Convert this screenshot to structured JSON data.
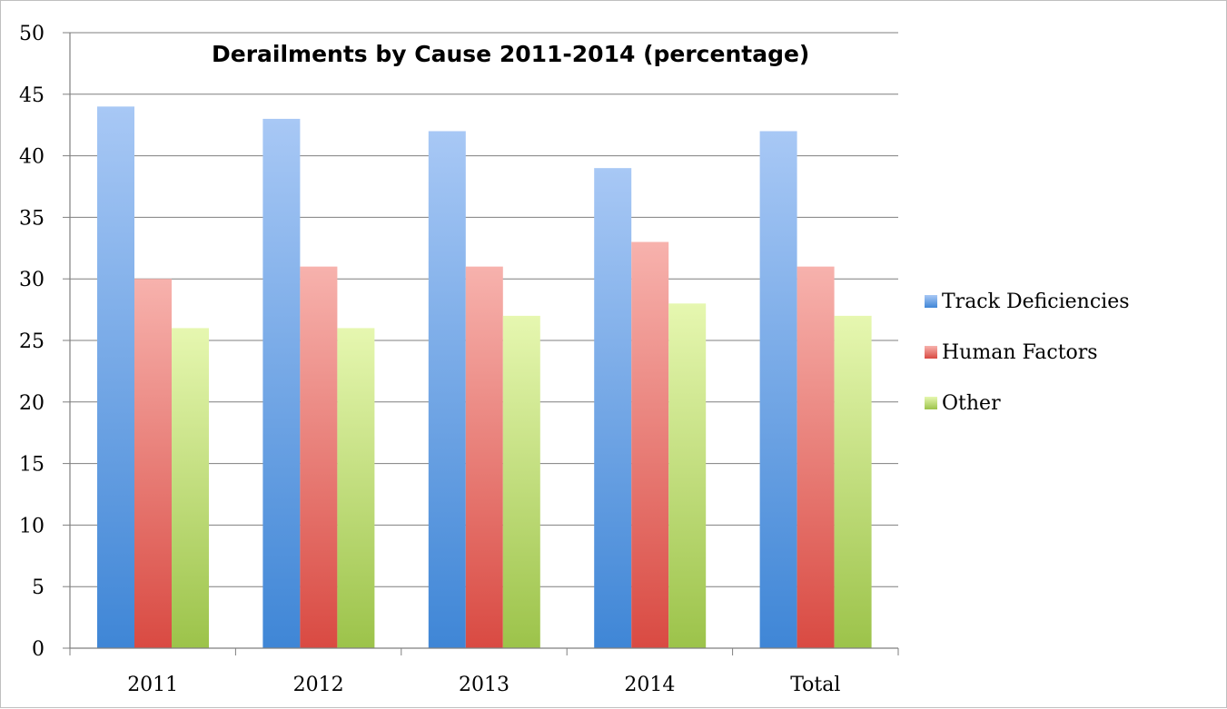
{
  "chart_data": {
    "type": "bar",
    "title": "Derailments by Cause 2011-2014 (percentage)",
    "xlabel": "",
    "ylabel": "",
    "categories": [
      "2011",
      "2012",
      "2013",
      "2014",
      "Total"
    ],
    "ylim": [
      0,
      50
    ],
    "yticks": [
      0,
      5,
      10,
      15,
      20,
      25,
      30,
      35,
      40,
      45,
      50
    ],
    "grid": true,
    "legend_position": "right",
    "series": [
      {
        "name": "Track Deficiencies",
        "values": [
          44,
          43,
          42,
          39,
          42
        ],
        "color_top": "#a8c8f5",
        "color_bottom": "#3f86d6"
      },
      {
        "name": "Human Factors",
        "values": [
          30,
          31,
          31,
          33,
          31
        ],
        "color_top": "#f7b2ad",
        "color_bottom": "#d94a42"
      },
      {
        "name": "Other",
        "values": [
          26,
          26,
          27,
          28,
          27
        ],
        "color_top": "#e6f7b0",
        "color_bottom": "#9cc34a"
      }
    ]
  }
}
